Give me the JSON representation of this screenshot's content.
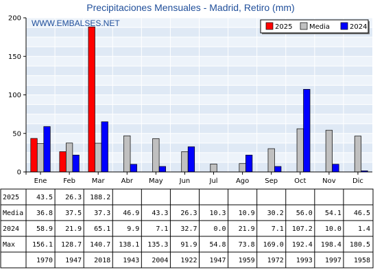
{
  "chart_data": {
    "type": "bar",
    "title": "Precipitaciones Mensuales - Madrid, Retiro (mm)",
    "watermark": "WWW.EMBALSES.NET",
    "categories": [
      "Ene",
      "Feb",
      "Mar",
      "Abr",
      "May",
      "Jun",
      "Jul",
      "Ago",
      "Sep",
      "Oct",
      "Nov",
      "Dic"
    ],
    "ylim": [
      0,
      200
    ],
    "yticks": [
      0,
      50,
      100,
      150,
      200
    ],
    "grid": true,
    "legend_position": "top-right",
    "series": [
      {
        "name": "2025",
        "color": "#ff0000",
        "values": [
          43.5,
          26.3,
          188.2,
          null,
          null,
          null,
          null,
          null,
          null,
          null,
          null,
          null
        ]
      },
      {
        "name": "Media",
        "color": "#c0c0c0",
        "values": [
          36.8,
          37.5,
          37.3,
          46.9,
          43.3,
          26.3,
          10.3,
          10.9,
          30.2,
          56.0,
          54.1,
          46.5
        ]
      },
      {
        "name": "2024",
        "color": "#0000ff",
        "values": [
          58.9,
          21.9,
          65.1,
          9.9,
          7.1,
          32.7,
          0.0,
          21.9,
          7.1,
          107.2,
          10.0,
          1.4
        ]
      }
    ],
    "table": {
      "rows": [
        {
          "label": "2025",
          "cells": [
            "43.5",
            "26.3",
            "188.2",
            "",
            "",
            "",
            "",
            "",
            "",
            "",
            "",
            ""
          ]
        },
        {
          "label": "Media",
          "cells": [
            "36.8",
            "37.5",
            "37.3",
            "46.9",
            "43.3",
            "26.3",
            "10.3",
            "10.9",
            "30.2",
            "56.0",
            "54.1",
            "46.5"
          ]
        },
        {
          "label": "2024",
          "cells": [
            "58.9",
            "21.9",
            "65.1",
            "9.9",
            "7.1",
            "32.7",
            "0.0",
            "21.9",
            "7.1",
            "107.2",
            "10.0",
            "1.4"
          ]
        },
        {
          "label": "Max",
          "cells": [
            "156.1",
            "128.7",
            "140.7",
            "138.1",
            "135.3",
            "91.9",
            "54.8",
            "73.8",
            "169.0",
            "192.4",
            "198.4",
            "180.5"
          ]
        },
        {
          "label": "",
          "cells": [
            "1970",
            "1947",
            "2018",
            "1943",
            "2004",
            "1922",
            "1947",
            "1959",
            "1972",
            "1993",
            "1997",
            "1958"
          ]
        }
      ]
    }
  }
}
